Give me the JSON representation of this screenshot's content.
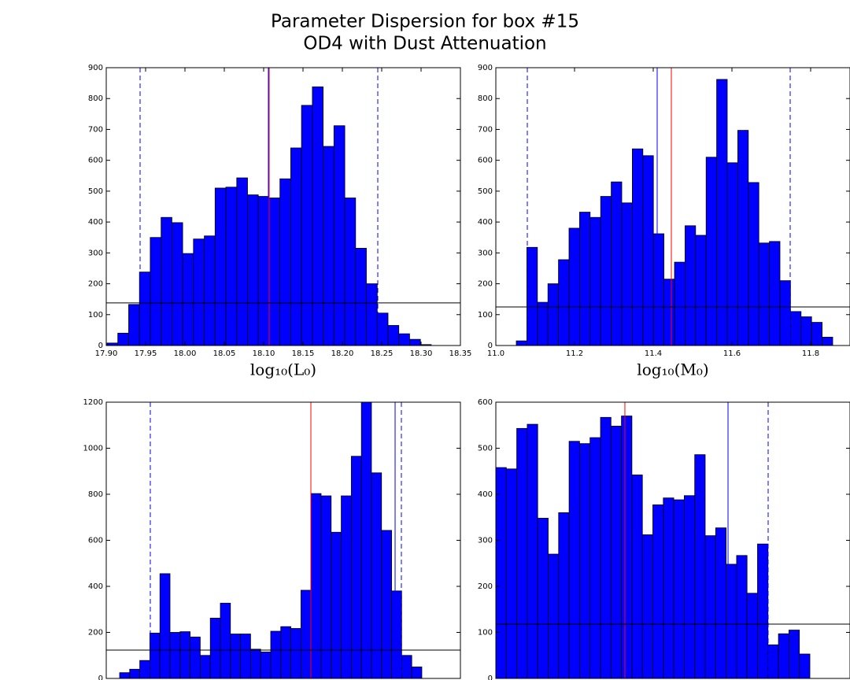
{
  "suptitle": [
    "Parameter Dispersion for box #15",
    "OD4 with Dust Attenuation"
  ],
  "chart_data": [
    {
      "type": "histogram",
      "color": "#0000ff",
      "bins": [
        17.901,
        17.9147,
        17.9285,
        17.9422,
        17.9559,
        17.9697,
        17.9834,
        17.9971,
        18.0108,
        18.0246,
        18.0383,
        18.052,
        18.0658,
        18.0795,
        18.0932,
        18.107,
        18.1207,
        18.1344,
        18.1481,
        18.1619,
        18.1756,
        18.1893,
        18.2031,
        18.2168,
        18.2305,
        18.2443,
        18.258,
        18.2717,
        18.2854,
        18.2992,
        18.3129
      ],
      "counts": [
        8,
        40,
        133,
        238,
        350,
        415,
        398,
        298,
        345,
        355,
        510,
        513,
        543,
        488,
        483,
        478,
        540,
        640,
        778,
        838,
        645,
        712,
        478,
        315,
        200,
        105,
        65,
        38,
        20,
        3
      ],
      "xlim": [
        17.9,
        18.35
      ],
      "ylim": [
        0,
        900
      ],
      "xticks": [
        {
          "value": 17.9,
          "label": "17.90"
        },
        {
          "value": 17.95,
          "label": "17.95"
        },
        {
          "value": 18.0,
          "label": "18.00"
        },
        {
          "value": 18.05,
          "label": "18.05"
        },
        {
          "value": 18.1,
          "label": "18.10"
        },
        {
          "value": 18.15,
          "label": "18.15"
        },
        {
          "value": 18.2,
          "label": "18.20"
        },
        {
          "value": 18.25,
          "label": "18.25"
        },
        {
          "value": 18.3,
          "label": "18.30"
        },
        {
          "value": 18.35,
          "label": "18.35"
        }
      ],
      "yticks": [
        0,
        100,
        200,
        300,
        400,
        500,
        600,
        700,
        800,
        900
      ],
      "xlabel": "log₁₀(L₀)",
      "vlines": [
        {
          "x": 17.943,
          "color": "#0000ff",
          "style": "dashed"
        },
        {
          "x": 18.245,
          "color": "#0000ff",
          "style": "dashed"
        },
        {
          "x": 18.106,
          "color": "#0000ff",
          "style": "solid"
        },
        {
          "x": 18.107,
          "color": "#ff0000",
          "style": "solid"
        }
      ],
      "hline": {
        "y": 138,
        "color": "#000000"
      }
    },
    {
      "type": "histogram",
      "color": "#0000ff",
      "bins": [
        11.052,
        11.0788,
        11.1056,
        11.1324,
        11.1592,
        11.186,
        11.2128,
        11.2396,
        11.2664,
        11.2932,
        11.32,
        11.3468,
        11.3736,
        11.4004,
        11.4272,
        11.454,
        11.4808,
        11.5076,
        11.5344,
        11.5612,
        11.588,
        11.6148,
        11.6416,
        11.6684,
        11.6952,
        11.722,
        11.7488,
        11.7756,
        11.8024,
        11.8292,
        11.856
      ],
      "counts": [
        15,
        318,
        140,
        200,
        278,
        380,
        432,
        415,
        483,
        530,
        462,
        637,
        615,
        362,
        215,
        270,
        388,
        357,
        610,
        862,
        592,
        697,
        528,
        332,
        337,
        210,
        110,
        93,
        75,
        27
      ],
      "xlim": [
        11.0,
        11.9
      ],
      "ylim": [
        0,
        900
      ],
      "xticks": [
        {
          "value": 11.0,
          "label": "11.0"
        },
        {
          "value": 11.2,
          "label": "11.2"
        },
        {
          "value": 11.4,
          "label": "11.4"
        },
        {
          "value": 11.6,
          "label": "11.6"
        },
        {
          "value": 11.8,
          "label": "11.8"
        }
      ],
      "yticks": [
        0,
        100,
        200,
        300,
        400,
        500,
        600,
        700,
        800,
        900
      ],
      "xlabel": "log₁₀(M₀)",
      "vlines": [
        {
          "x": 11.08,
          "color": "#0000ff",
          "style": "dashed"
        },
        {
          "x": 11.748,
          "color": "#0000ff",
          "style": "dashed"
        },
        {
          "x": 11.41,
          "color": "#0000ff",
          "style": "solid"
        },
        {
          "x": 11.446,
          "color": "#ff0000",
          "style": "solid"
        }
      ],
      "hline": {
        "y": 125,
        "color": "#000000"
      }
    },
    {
      "type": "histogram",
      "color": "#0000ff",
      "bins": [
        0.0378,
        0.0662,
        0.0947,
        0.1231,
        0.1516,
        0.18,
        0.2084,
        0.2369,
        0.2653,
        0.2938,
        0.3222,
        0.3506,
        0.3791,
        0.4075,
        0.436,
        0.4644,
        0.4928,
        0.5213,
        0.5497,
        0.5782,
        0.6066,
        0.635,
        0.6635,
        0.6919,
        0.7204,
        0.7488,
        0.7772,
        0.8057,
        0.8341,
        0.8626,
        0.891
      ],
      "counts": [
        25,
        40,
        78,
        197,
        455,
        200,
        203,
        180,
        100,
        262,
        327,
        193,
        193,
        127,
        115,
        205,
        225,
        217,
        383,
        803,
        793,
        635,
        793,
        965,
        1200,
        893,
        643,
        380,
        100,
        50
      ],
      "xlim": [
        0,
        1
      ],
      "ylim": [
        0,
        1200
      ],
      "yticks": [
        0,
        200,
        400,
        600,
        800,
        1000,
        1200
      ],
      "vlines": [
        {
          "x": 0.1244,
          "color": "#0000ff",
          "style": "dashed"
        },
        {
          "x": 0.8333,
          "color": "#0000ff",
          "style": "dashed"
        },
        {
          "x": 0.8156,
          "color": "#0000ff",
          "style": "solid"
        },
        {
          "x": 0.5778,
          "color": "#ff0000",
          "style": "solid"
        }
      ],
      "hline": {
        "y": 123,
        "color": "#000000"
      }
    },
    {
      "type": "histogram",
      "color": "#0000ff",
      "bins": [
        0,
        0.0296,
        0.0591,
        0.0887,
        0.1182,
        0.1478,
        0.1773,
        0.2069,
        0.2364,
        0.266,
        0.2956,
        0.3251,
        0.3547,
        0.3842,
        0.4138,
        0.4433,
        0.4729,
        0.5024,
        0.532,
        0.5616,
        0.5911,
        0.6207,
        0.6502,
        0.6798,
        0.7093,
        0.7389,
        0.7684,
        0.798,
        0.8276,
        0.8571,
        0.8867
      ],
      "counts": [
        458,
        455,
        543,
        552,
        348,
        270,
        360,
        515,
        510,
        523,
        567,
        548,
        570,
        442,
        312,
        377,
        392,
        388,
        397,
        486,
        310,
        327,
        248,
        267,
        185,
        292,
        73,
        97,
        105,
        53
      ],
      "xlim": [
        0,
        1
      ],
      "ylim": [
        0,
        600
      ],
      "yticks": [
        0,
        100,
        200,
        300,
        400,
        500,
        600
      ],
      "vlines": [
        {
          "x": 0.7689,
          "color": "#0000ff",
          "style": "dashed"
        },
        {
          "x": 0.6556,
          "color": "#0000ff",
          "style": "solid"
        },
        {
          "x": 0.3644,
          "color": "#ff0000",
          "style": "solid"
        }
      ],
      "hline": {
        "y": 118,
        "color": "#000000"
      }
    }
  ]
}
